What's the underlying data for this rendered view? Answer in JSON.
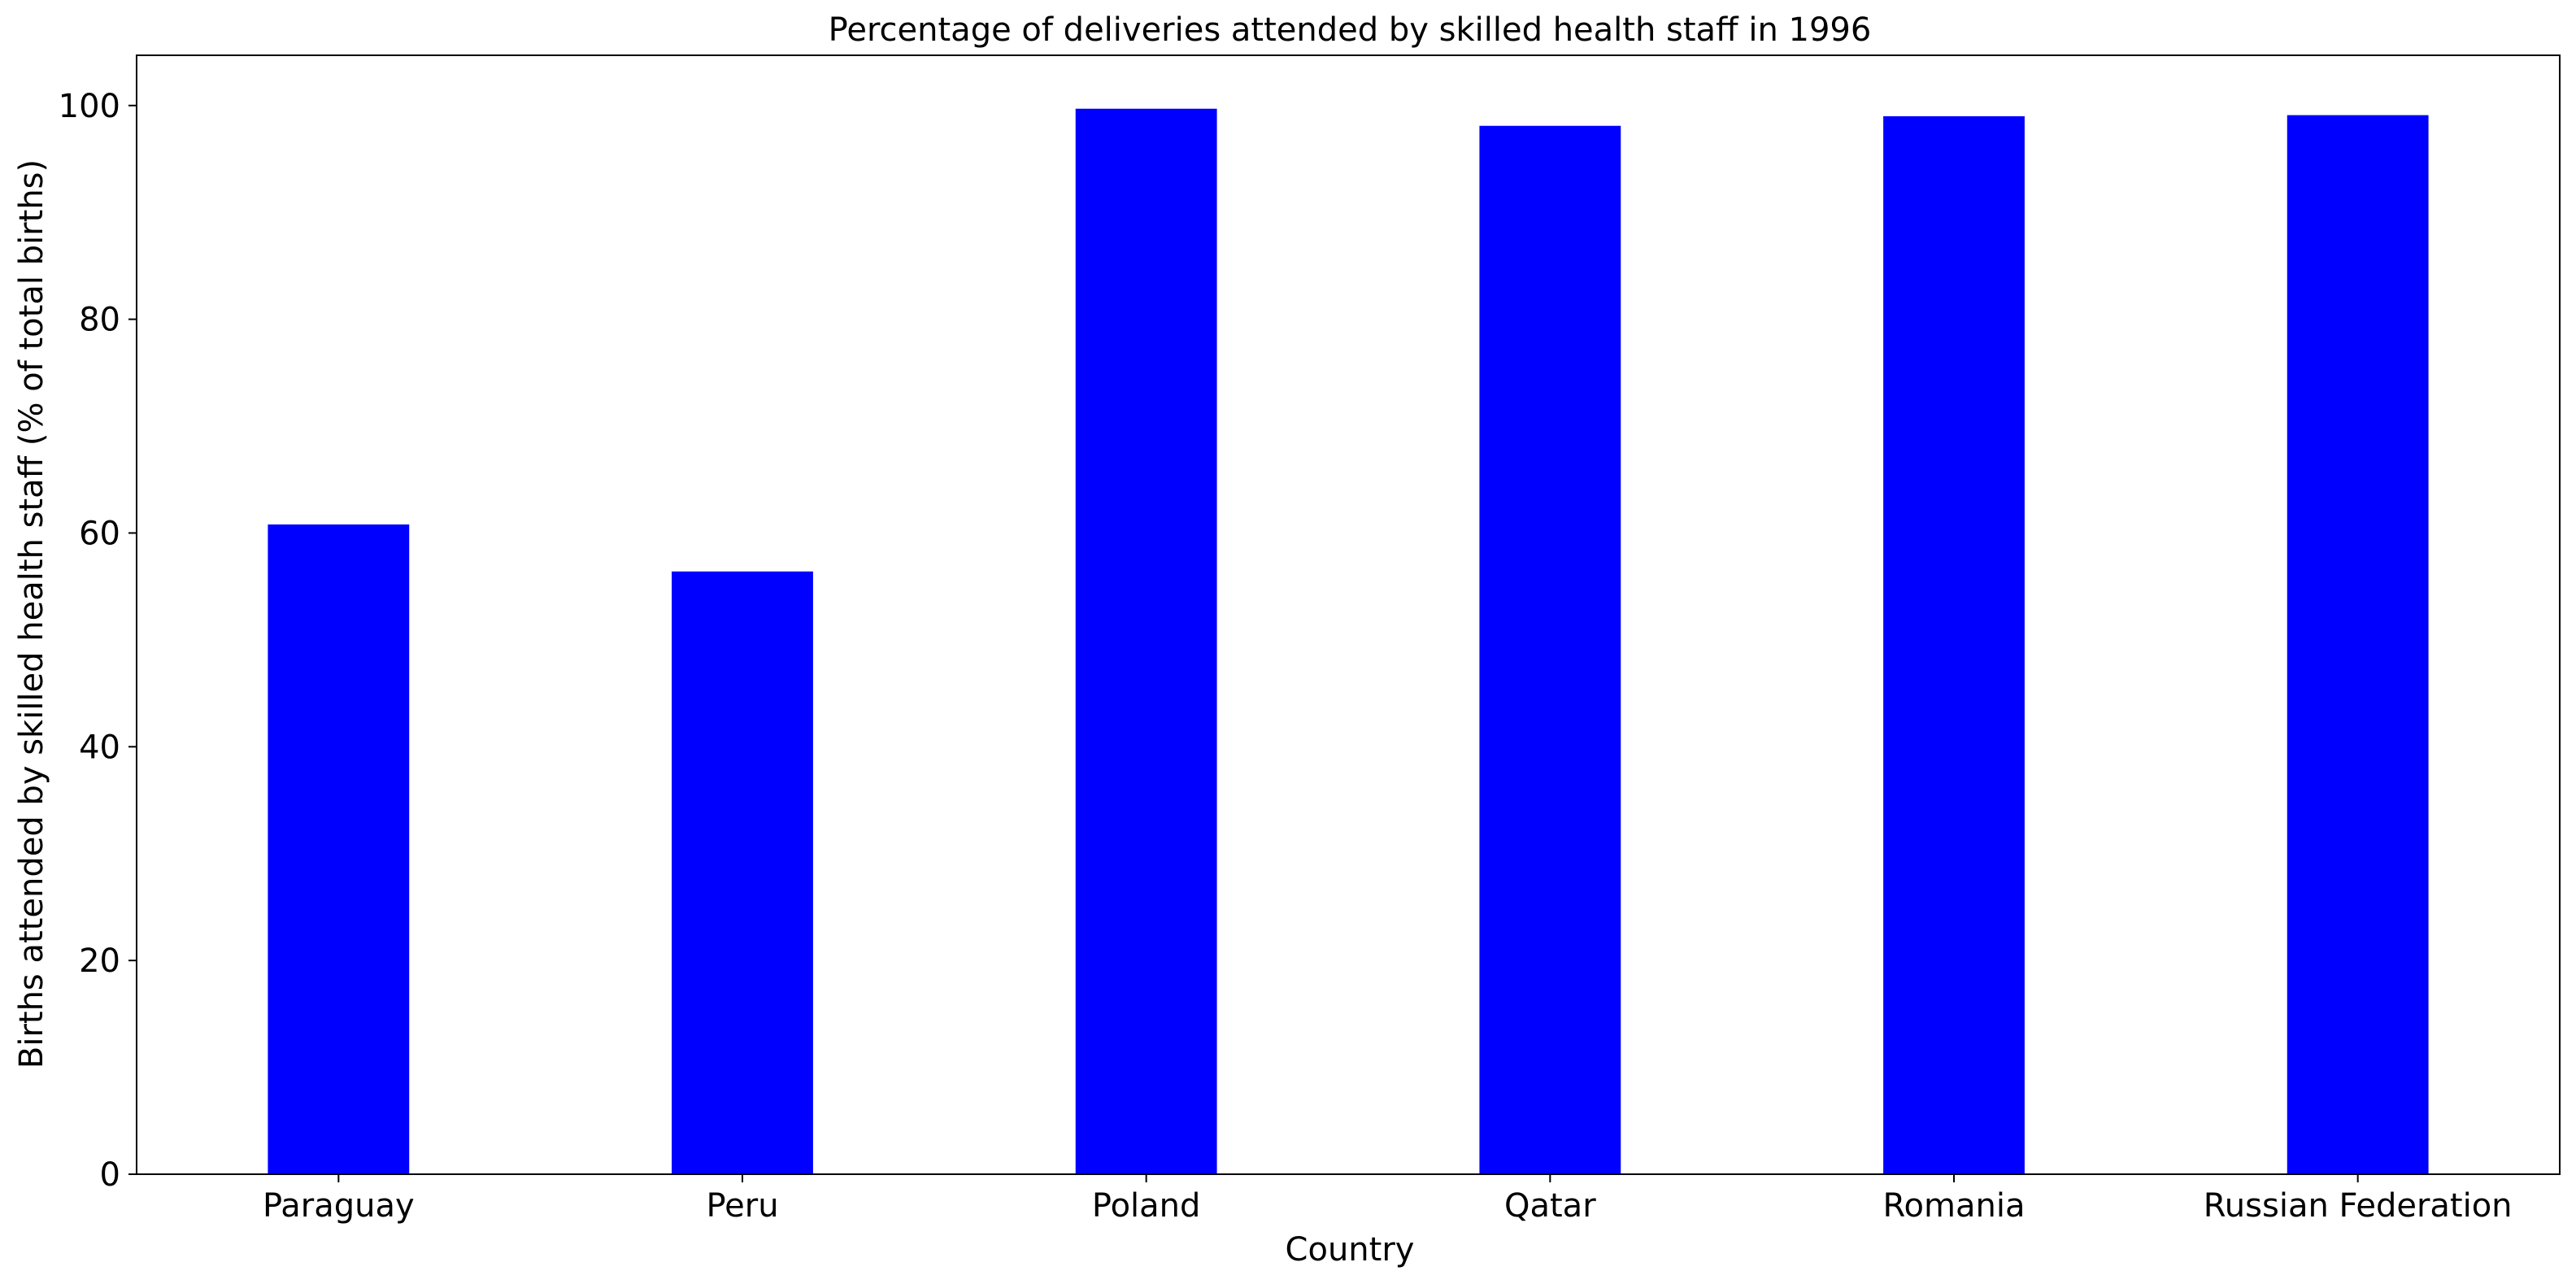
{
  "chart_data": {
    "type": "bar",
    "title": "Percentage of deliveries attended by skilled health staff in 1996",
    "xlabel": "Country",
    "ylabel": "Births attended by skilled health staff (% of total births)",
    "categories": [
      "Paraguay",
      "Peru",
      "Poland",
      "Qatar",
      "Romania",
      "Russian Federation"
    ],
    "values": [
      60.8,
      56.4,
      99.7,
      98.1,
      99.0,
      99.1
    ],
    "ylim": [
      0,
      104.7
    ],
    "yticks": [
      0,
      20,
      40,
      60,
      80,
      100
    ],
    "grid": false,
    "legend": "none",
    "bar_color": "#0000ff"
  }
}
